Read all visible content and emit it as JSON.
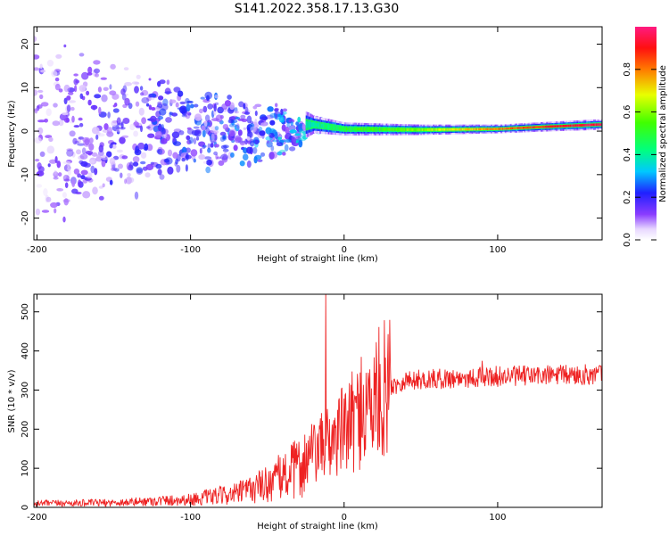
{
  "title": "S141.2022.358.17.13.G30",
  "chart_data": [
    {
      "type": "heatmap",
      "xlabel": "Height of straight line (km)",
      "ylabel": "Frequency (Hz)",
      "xlim": [
        -202,
        168
      ],
      "ylim": [
        -25,
        24
      ],
      "x_ticks": [
        -200,
        -100,
        0,
        100
      ],
      "y_ticks": [
        20,
        10,
        0,
        -10,
        -20
      ],
      "colorbar": {
        "label": "Normalized spectral amplitude",
        "range": [
          0,
          1
        ],
        "ticks": [
          0.0,
          0.2,
          0.4,
          0.6,
          0.8
        ]
      },
      "band": {
        "description_points": [
          {
            "x": -200,
            "spread": 24,
            "amp": 0.15
          },
          {
            "x": -150,
            "spread": 18,
            "amp": 0.2
          },
          {
            "x": -100,
            "spread": 10,
            "amp": 0.25
          },
          {
            "x": -50,
            "spread": 8,
            "amp": 0.3
          },
          {
            "x": -20,
            "spread": 2,
            "amp": 0.4
          },
          {
            "x": 0,
            "spread": 1.5,
            "amp": 0.5
          },
          {
            "x": 50,
            "spread": 1.2,
            "amp": 0.6
          },
          {
            "x": 100,
            "spread": 1.0,
            "amp": 0.8
          },
          {
            "x": 160,
            "spread": 1.2,
            "amp": 0.95
          }
        ],
        "center_freq": [
          {
            "x": -20,
            "y": 1.5
          },
          {
            "x": 0,
            "y": 0.5
          },
          {
            "x": 50,
            "y": 0.3
          },
          {
            "x": 100,
            "y": 0.5
          },
          {
            "x": 130,
            "y": 1.0
          },
          {
            "x": 165,
            "y": 1.5
          }
        ]
      }
    },
    {
      "type": "line",
      "xlabel": "Height of straight line (km)",
      "ylabel": "SNR (10 * v/v)",
      "xlim": [
        -202,
        168
      ],
      "ylim": [
        0,
        545
      ],
      "x_ticks": [
        -200,
        -100,
        0,
        100
      ],
      "y_ticks": [
        0,
        100,
        200,
        300,
        400,
        500
      ],
      "series": [
        {
          "color": "#ee2222",
          "trend": [
            {
              "x": -202,
              "y": 10
            },
            {
              "x": -150,
              "y": 12
            },
            {
              "x": -100,
              "y": 20
            },
            {
              "x": -70,
              "y": 35
            },
            {
              "x": -50,
              "y": 60
            },
            {
              "x": -30,
              "y": 100
            },
            {
              "x": -15,
              "y": 150
            },
            {
              "x": 0,
              "y": 200
            },
            {
              "x": 15,
              "y": 250
            },
            {
              "x": 25,
              "y": 300
            },
            {
              "x": 40,
              "y": 325
            },
            {
              "x": 70,
              "y": 330
            },
            {
              "x": 100,
              "y": 335
            },
            {
              "x": 168,
              "y": 340
            }
          ],
          "spikes": [
            {
              "x": -12,
              "y": 545
            },
            {
              "x": 11,
              "y": 385
            },
            {
              "x": 90,
              "y": 375
            },
            {
              "x": 30,
              "y": 375
            }
          ]
        }
      ]
    }
  ]
}
